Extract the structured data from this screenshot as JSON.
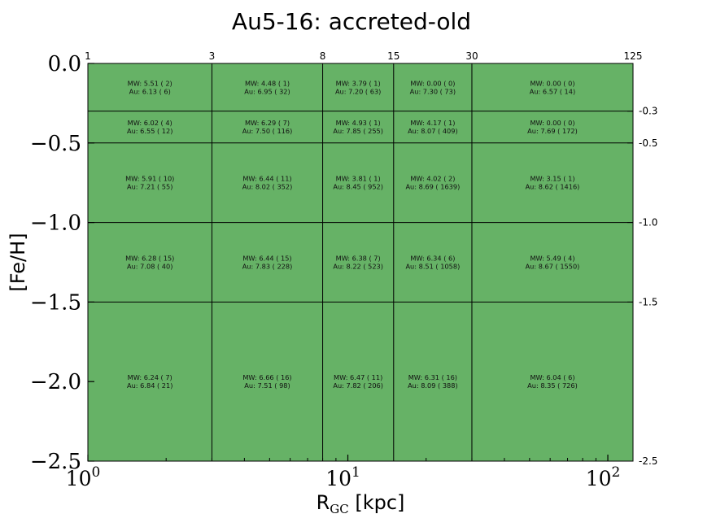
{
  "chart_data": {
    "type": "heatmap",
    "title": "Au5-16: accreted-old",
    "xlabel": "R",
    "xlabel_sub": "GC",
    "xlabel_unit": "[kpc]",
    "ylabel": "[Fe/H]",
    "x_scale": "log",
    "xlim": [
      1,
      125
    ],
    "ylim": [
      -2.5,
      0.0
    ],
    "fill_color": "#66b266",
    "x_edges": [
      1,
      3,
      8,
      15,
      30,
      125
    ],
    "y_edges": [
      0.0,
      -0.3,
      -0.5,
      -1.0,
      -1.5,
      -2.5
    ],
    "x_edge_labels": [
      "1",
      "3",
      "8",
      "15",
      "30",
      "125"
    ],
    "y_edge_labels": [
      "-0.3",
      "-0.5",
      "-1.0",
      "-1.5",
      "-2.5"
    ],
    "x_major_ticks": [
      1,
      10,
      100
    ],
    "x_major_tick_labels": [
      "10",
      "10",
      "10"
    ],
    "x_major_tick_exps": [
      "0",
      "1",
      "2"
    ],
    "y_major_ticks": [
      0.0,
      -0.5,
      -1.0,
      -1.5,
      -2.0,
      -2.5
    ],
    "y_major_tick_labels": [
      "0.0",
      "−0.5",
      "−1.0",
      "−1.5",
      "−2.0",
      "−2.5"
    ],
    "cells": [
      [
        {
          "mw": "MW: 5.51 ( 2)",
          "au": "Au: 6.13 ( 6)"
        },
        {
          "mw": "MW: 4.48 ( 1)",
          "au": "Au: 6.95 ( 32)"
        },
        {
          "mw": "MW: 3.79 ( 1)",
          "au": "Au: 7.20 ( 63)"
        },
        {
          "mw": "MW: 0.00 ( 0)",
          "au": "Au: 7.30 ( 73)"
        },
        {
          "mw": "MW: 0.00 ( 0)",
          "au": "Au: 6.57 ( 14)"
        }
      ],
      [
        {
          "mw": "MW: 6.02 ( 4)",
          "au": "Au: 6.55 ( 12)"
        },
        {
          "mw": "MW: 6.29 ( 7)",
          "au": "Au: 7.50 ( 116)"
        },
        {
          "mw": "MW: 4.93 ( 1)",
          "au": "Au: 7.85 ( 255)"
        },
        {
          "mw": "MW: 4.17 ( 1)",
          "au": "Au: 8.07 ( 409)"
        },
        {
          "mw": "MW: 0.00 ( 0)",
          "au": "Au: 7.69 ( 172)"
        }
      ],
      [
        {
          "mw": "MW: 5.91 ( 10)",
          "au": "Au: 7.21 ( 55)"
        },
        {
          "mw": "MW: 6.44 ( 11)",
          "au": "Au: 8.02 ( 352)"
        },
        {
          "mw": "MW: 3.81 ( 1)",
          "au": "Au: 8.45 ( 952)"
        },
        {
          "mw": "MW: 4.02 ( 2)",
          "au": "Au: 8.69 ( 1639)"
        },
        {
          "mw": "MW: 3.15 ( 1)",
          "au": "Au: 8.62 ( 1416)"
        }
      ],
      [
        {
          "mw": "MW: 6.28 ( 15)",
          "au": "Au: 7.08 ( 40)"
        },
        {
          "mw": "MW: 6.44 ( 15)",
          "au": "Au: 7.83 ( 228)"
        },
        {
          "mw": "MW: 6.38 ( 7)",
          "au": "Au: 8.22 ( 523)"
        },
        {
          "mw": "MW: 6.34 ( 6)",
          "au": "Au: 8.51 ( 1058)"
        },
        {
          "mw": "MW: 5.49 ( 4)",
          "au": "Au: 8.67 ( 1550)"
        }
      ],
      [
        {
          "mw": "MW: 6.24 ( 7)",
          "au": "Au: 6.84 ( 21)"
        },
        {
          "mw": "MW: 6.66 ( 16)",
          "au": "Au: 7.51 ( 98)"
        },
        {
          "mw": "MW: 6.47 ( 11)",
          "au": "Au: 7.82 ( 206)"
        },
        {
          "mw": "MW: 6.31 ( 16)",
          "au": "Au: 8.09 ( 388)"
        },
        {
          "mw": "MW: 6.04 ( 6)",
          "au": "Au: 8.35 ( 726)"
        }
      ]
    ]
  }
}
